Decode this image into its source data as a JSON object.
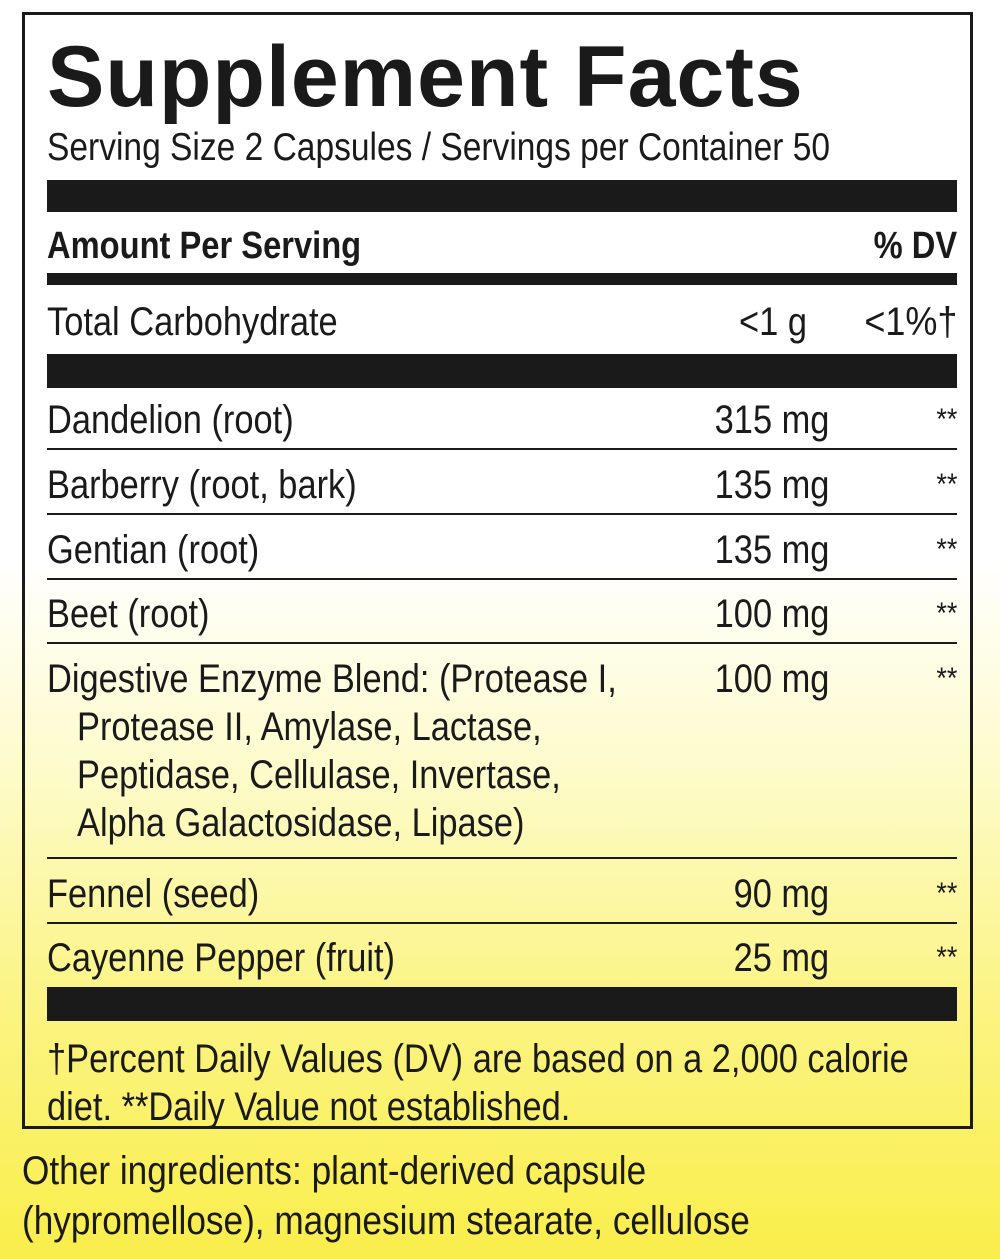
{
  "title": "Supplement Facts",
  "serving_line": "Serving Size 2 Capsules / Servings per Container 50",
  "header": {
    "amount_label": "Amount Per Serving",
    "dv_label": "% DV"
  },
  "total_carb": {
    "name": "Total Carbohydrate",
    "amount": "<1 g",
    "dv": "<1%†"
  },
  "ingredients": [
    {
      "name": "Dandelion (root)",
      "amount": "315 mg",
      "dv": "**"
    },
    {
      "name": "Barberry (root, bark)",
      "amount": "135 mg",
      "dv": "**"
    },
    {
      "name": "Gentian (root)",
      "amount": "135 mg",
      "dv": "**"
    },
    {
      "name": "Beet (root)",
      "amount": "100 mg",
      "dv": "**"
    },
    {
      "name": "Digestive Enzyme Blend: (Protease I,",
      "lines": [
        "Protease II, Amylase, Lactase,",
        "Peptidase, Cellulase, Invertase,",
        "Alpha Galactosidase, Lipase)"
      ],
      "amount": "100 mg",
      "dv": "**"
    },
    {
      "name": "Fennel (seed)",
      "amount": "90 mg",
      "dv": "**"
    },
    {
      "name": "Cayenne Pepper (fruit)",
      "amount": "25 mg",
      "dv": "**"
    }
  ],
  "footnote": [
    "†Percent Daily Values (DV) are based on a 2,000 calorie",
    "diet. **Daily Value not established."
  ],
  "other_ingredients": [
    "Other ingredients: plant-derived capsule",
    "(hypromellose), magnesium stearate, cellulose"
  ]
}
